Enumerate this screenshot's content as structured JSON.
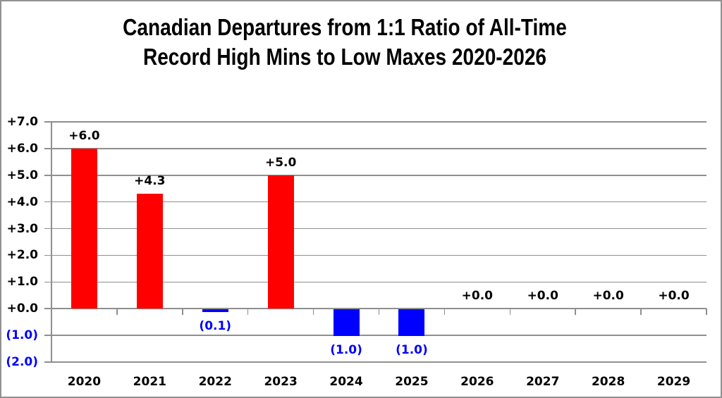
{
  "title": {
    "line1": "Canadian Departures from 1:1 Ratio of All-Time",
    "line2": "Record High Mins to Low Maxes 2020-2026"
  },
  "chart_data": {
    "type": "bar",
    "categories": [
      "2020",
      "2021",
      "2022",
      "2023",
      "2024",
      "2025",
      "2026",
      "2027",
      "2028",
      "2029"
    ],
    "values": [
      6.0,
      4.3,
      -0.1,
      5.0,
      -1.0,
      -1.0,
      0.0,
      0.0,
      0.0,
      0.0
    ],
    "bar_labels": [
      "+6.0",
      "+4.3",
      "(0.1)",
      "+5.0",
      "(1.0)",
      "(1.0)",
      "+0.0",
      "+0.0",
      "+0.0",
      "+0.0"
    ],
    "y_tick_labels": [
      "+7.0",
      "+6.0",
      "+5.0",
      "+4.0",
      "+3.0",
      "+2.0",
      "+1.0",
      "+0.0",
      "(1.0)",
      "(2.0)"
    ],
    "y_tick_values": [
      7,
      6,
      5,
      4,
      3,
      2,
      1,
      0,
      -1,
      -2
    ],
    "ylim": [
      -2,
      7
    ],
    "xlabel": "",
    "ylabel": "",
    "grid": true,
    "legend_position": "none",
    "colors": {
      "positive_bar": "#FF0000",
      "negative_bar": "#0000FF",
      "positive_text": "#000000",
      "negative_text": "#0000FF",
      "gridline": "#8F8F8F",
      "axis": "#8F8F8F",
      "frame_border": "#919191",
      "title_text": "#000000"
    }
  }
}
